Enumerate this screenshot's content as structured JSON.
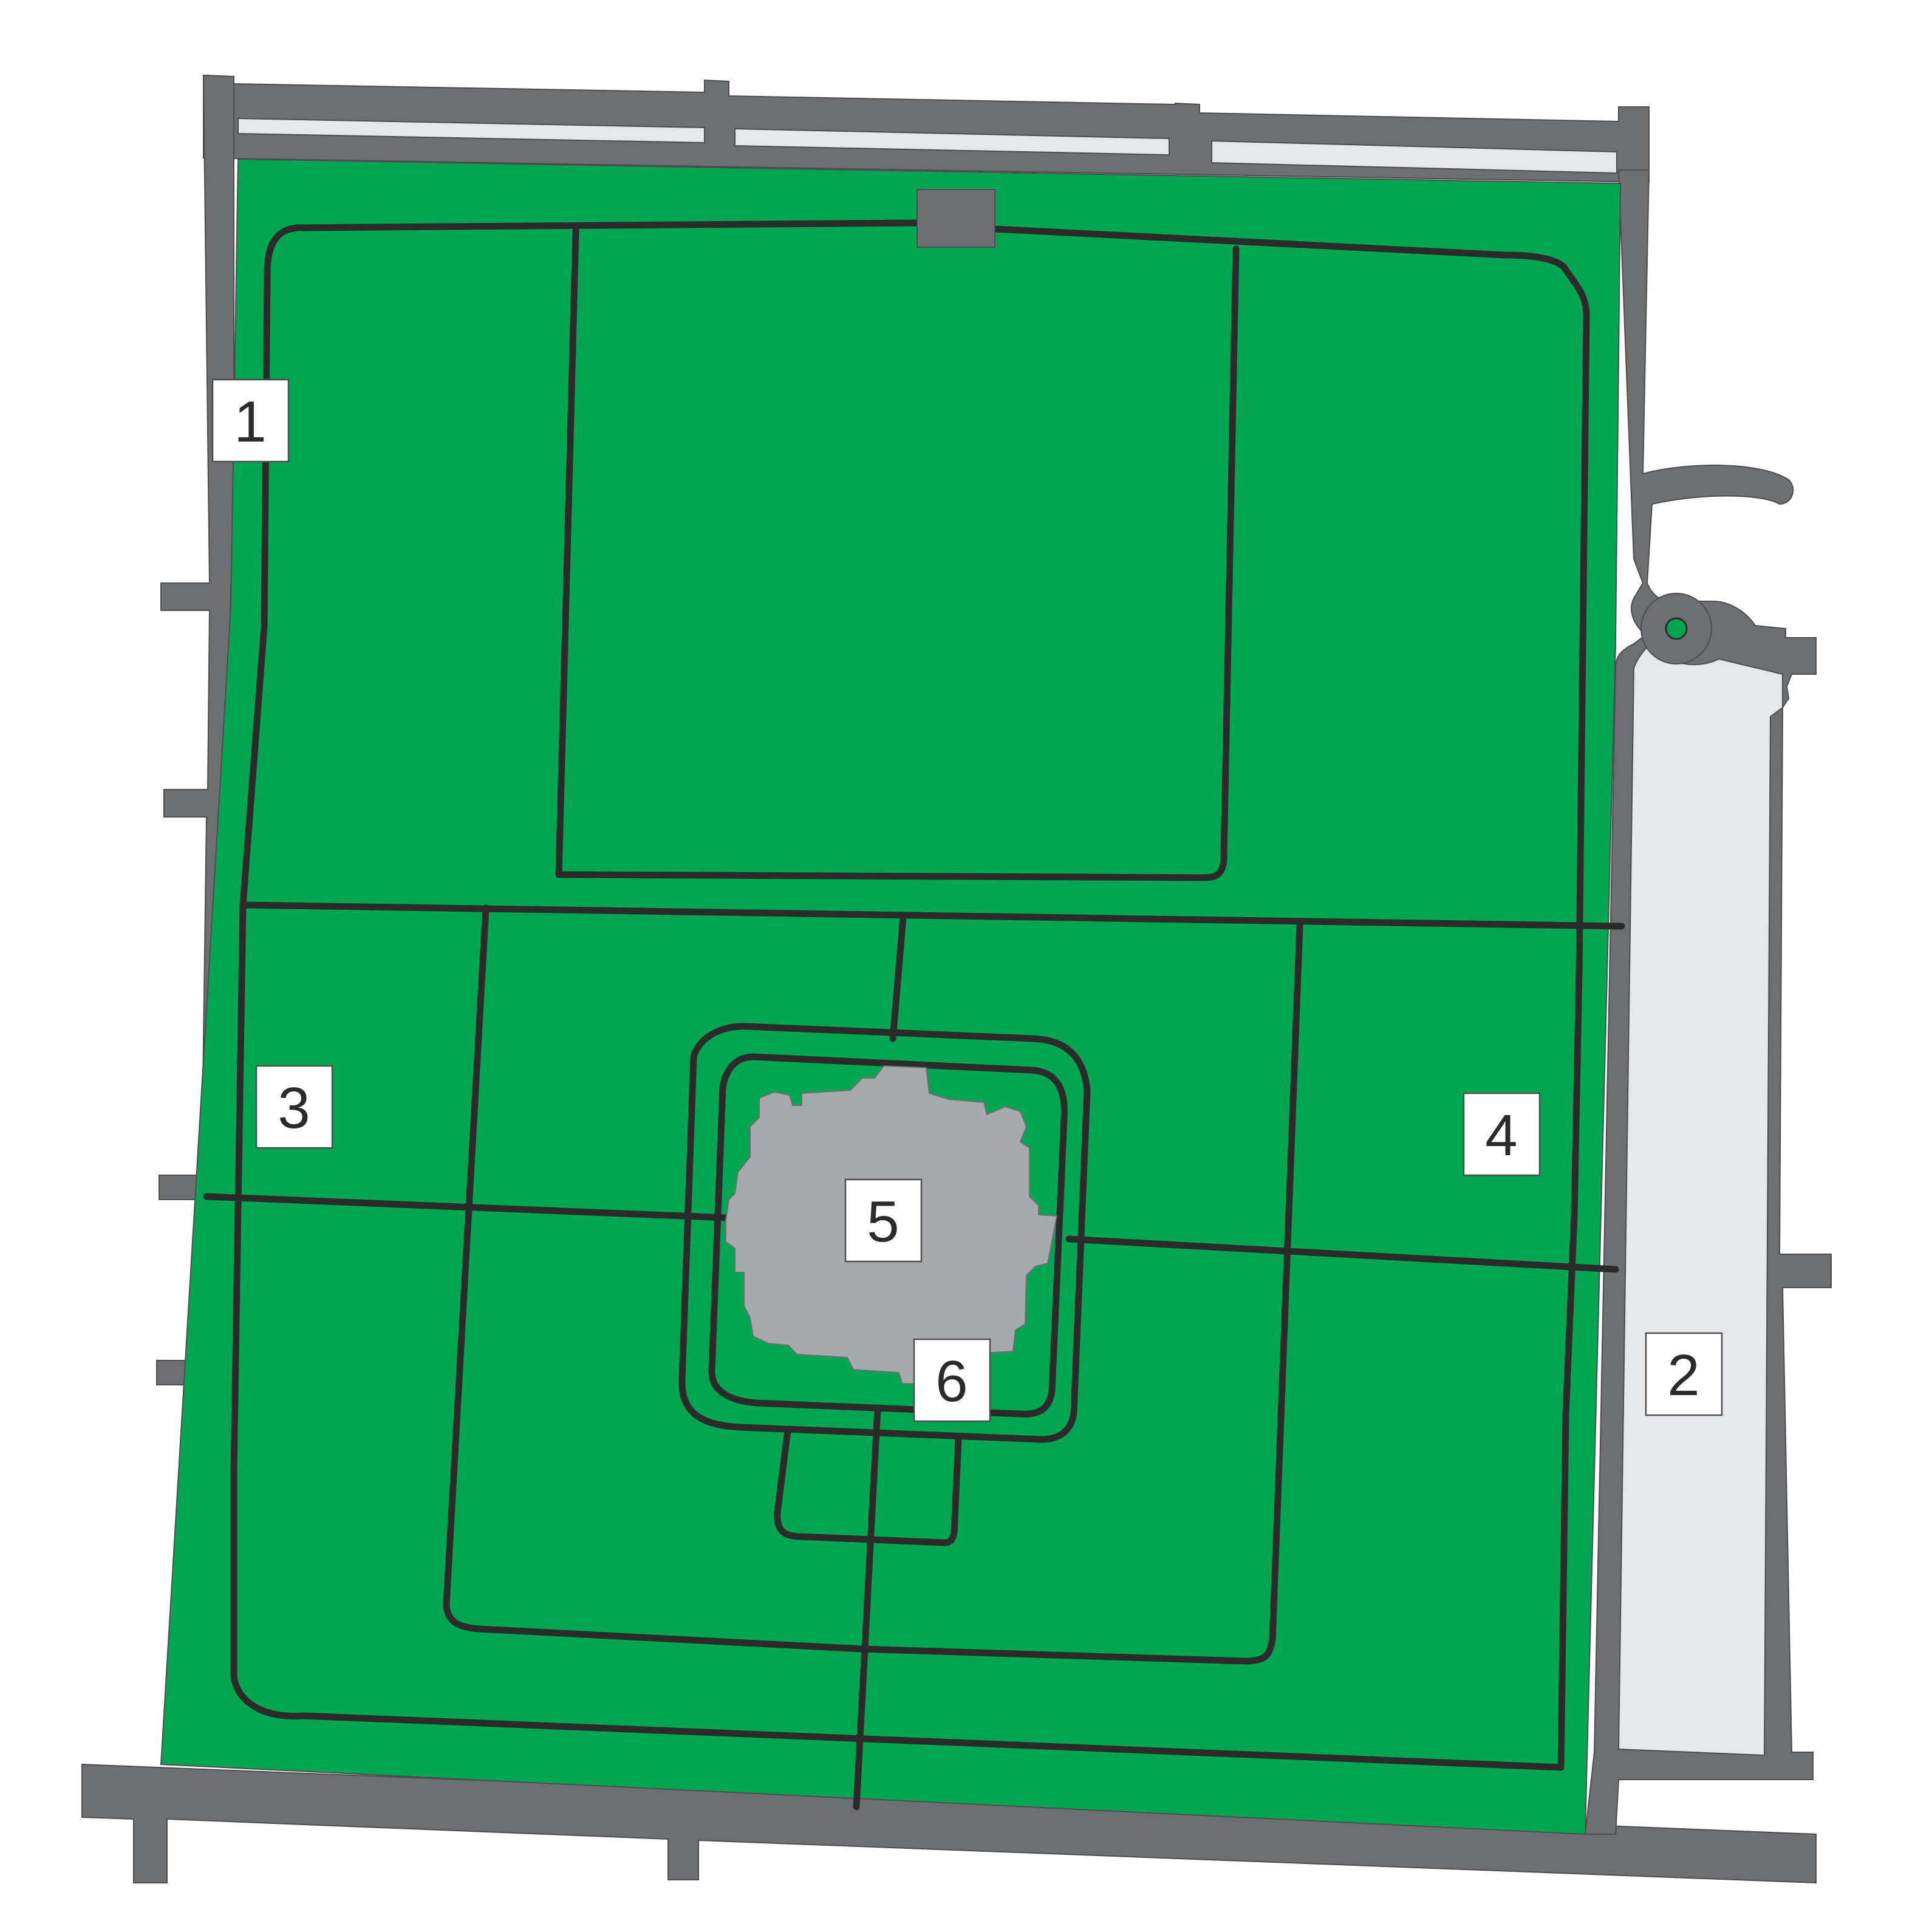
{
  "colors": {
    "park": "#00a651",
    "road": "#6e6f71",
    "path": "#2b2b2b",
    "plaza": "#e6e7e8",
    "building": "#a7a9ac",
    "label_bg": "#ffffff",
    "label_text": "#2b2b2b"
  },
  "labels": [
    {
      "id": "1",
      "text": "1"
    },
    {
      "id": "2",
      "text": "2"
    },
    {
      "id": "3",
      "text": "3"
    },
    {
      "id": "4",
      "text": "4"
    },
    {
      "id": "5",
      "text": "5"
    },
    {
      "id": "6",
      "text": "6"
    }
  ]
}
